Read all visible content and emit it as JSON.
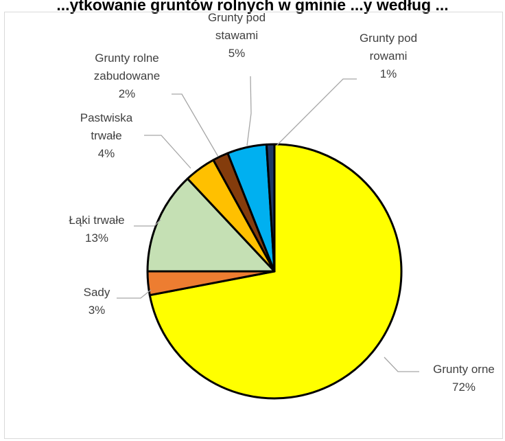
{
  "chart_data": {
    "type": "pie",
    "title": "...ytkowanie gruntów rolnych w gminie ...y według ...",
    "slices": [
      {
        "name": "Grunty orne",
        "pct_label": "72%",
        "value": 72,
        "color": "#ffff00",
        "label_lines": [
          "Grunty orne",
          "72%"
        ]
      },
      {
        "name": "Sady",
        "pct_label": "3%",
        "value": 3,
        "color": "#ed7d31",
        "label_lines": [
          "Sady",
          "3%"
        ]
      },
      {
        "name": "Łąki trwałe",
        "pct_label": "13%",
        "value": 13,
        "color": "#c5e0b4",
        "label_lines": [
          "Łąki trwałe",
          "13%"
        ]
      },
      {
        "name": "Pastwiska trwałe",
        "pct_label": "4%",
        "value": 4,
        "color": "#ffc000",
        "label_lines": [
          "Pastwiska",
          "trwałe",
          "4%"
        ]
      },
      {
        "name": "Grunty rolne zabudowane",
        "pct_label": "2%",
        "value": 2,
        "color": "#843c0c",
        "label_lines": [
          "Grunty rolne",
          "zabudowane",
          "2%"
        ]
      },
      {
        "name": "Grunty pod stawami",
        "pct_label": "5%",
        "value": 5,
        "color": "#00b0f0",
        "label_lines": [
          "Grunty pod",
          "stawami",
          "5%"
        ]
      },
      {
        "name": "Grunty pod rowami",
        "pct_label": "1%",
        "value": 1,
        "color": "#1f3864",
        "label_lines": [
          "Grunty pod",
          "rowami",
          "1%"
        ]
      }
    ],
    "legend": "none",
    "data_labels": "outside with leader lines"
  }
}
